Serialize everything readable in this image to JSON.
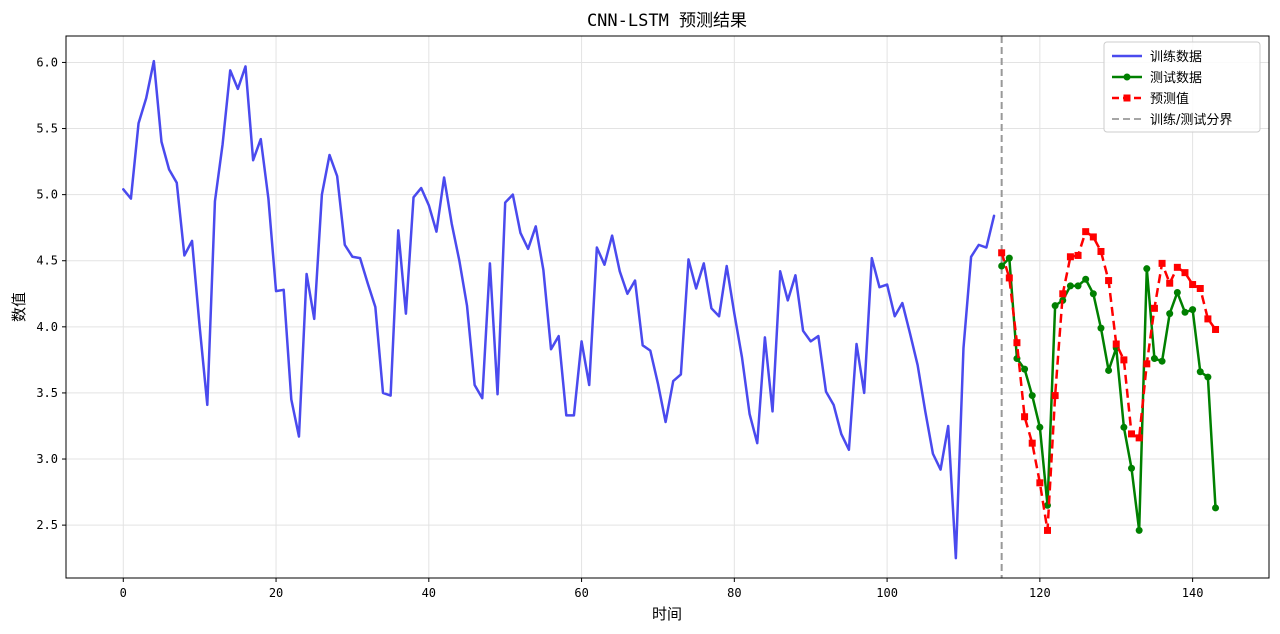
{
  "chart_data": {
    "type": "line",
    "title": "CNN-LSTM 预测结果",
    "xlabel": "时间",
    "ylabel": "数值",
    "xlim": [
      -7.5,
      150
    ],
    "ylim": [
      2.1,
      6.2
    ],
    "xticks": [
      0,
      20,
      40,
      60,
      80,
      100,
      120,
      140
    ],
    "yticks": [
      2.5,
      3.0,
      3.5,
      4.0,
      4.5,
      5.0,
      5.5,
      6.0
    ],
    "xtick_labels": [
      "0",
      "20",
      "40",
      "60",
      "80",
      "100",
      "120",
      "140"
    ],
    "ytick_labels": [
      "2.5",
      "3.0",
      "3.5",
      "4.0",
      "4.5",
      "5.0",
      "5.5",
      "6.0"
    ],
    "grid": true,
    "legend_position": "top-right",
    "split_x": 115,
    "series": [
      {
        "name": "训练数据",
        "color": "#4a4aee",
        "style": "solid",
        "marker": "none",
        "x_start": 0,
        "values": [
          5.04,
          4.97,
          5.54,
          5.73,
          6.01,
          5.4,
          5.19,
          5.09,
          4.54,
          4.65,
          4.0,
          3.41,
          4.95,
          5.38,
          5.94,
          5.8,
          5.97,
          5.26,
          5.42,
          4.97,
          4.27,
          4.28,
          3.45,
          3.17,
          4.4,
          4.06,
          5.0,
          5.3,
          5.14,
          4.62,
          4.53,
          4.52,
          4.33,
          4.15,
          3.5,
          3.48,
          4.73,
          4.1,
          4.98,
          5.05,
          4.92,
          4.72,
          5.13,
          4.78,
          4.5,
          4.16,
          3.56,
          3.46,
          4.48,
          3.49,
          4.94,
          5.0,
          4.71,
          4.59,
          4.76,
          4.43,
          3.83,
          3.93,
          3.33,
          3.33,
          3.89,
          3.56,
          4.6,
          4.47,
          4.69,
          4.42,
          4.25,
          4.35,
          3.86,
          3.82,
          3.57,
          3.28,
          3.59,
          3.64,
          4.51,
          4.29,
          4.48,
          4.14,
          4.08,
          4.46,
          4.1,
          3.77,
          3.34,
          3.12,
          3.92,
          3.36,
          4.42,
          4.2,
          4.39,
          3.97,
          3.89,
          3.93,
          3.51,
          3.41,
          3.19,
          3.07,
          3.87,
          3.5,
          4.52,
          4.3,
          4.32,
          4.08,
          4.18,
          3.95,
          3.71,
          3.36,
          3.04,
          2.92,
          3.25,
          2.25,
          3.84,
          4.53,
          4.62,
          4.6,
          4.84
        ]
      },
      {
        "name": "测试数据",
        "color": "#008000",
        "style": "solid",
        "marker": "circle",
        "x_start": 115,
        "values": [
          4.46,
          4.52,
          3.76,
          3.68,
          3.48,
          3.24,
          2.65,
          4.16,
          4.2,
          4.31,
          4.31,
          4.36,
          4.25,
          3.99,
          3.67,
          3.84,
          3.24,
          2.93,
          2.46,
          4.44,
          3.76,
          3.74,
          4.1,
          4.26,
          4.11,
          4.13,
          3.66,
          3.62,
          2.63
        ]
      },
      {
        "name": "预测值",
        "color": "#ff0000",
        "style": "dashed",
        "marker": "square",
        "x_start": 115,
        "values": [
          4.56,
          4.37,
          3.88,
          3.32,
          3.12,
          2.82,
          2.46,
          3.48,
          4.25,
          4.53,
          4.54,
          4.72,
          4.68,
          4.57,
          4.35,
          3.87,
          3.75,
          3.19,
          3.16,
          3.72,
          4.14,
          4.48,
          4.33,
          4.45,
          4.41,
          4.32,
          4.29,
          4.06,
          3.98
        ]
      }
    ],
    "legend": [
      {
        "label": "训练数据",
        "color": "#4a4aee",
        "style": "solid",
        "marker": "none"
      },
      {
        "label": "测试数据",
        "color": "#008000",
        "style": "solid",
        "marker": "circle"
      },
      {
        "label": "预测值",
        "color": "#ff0000",
        "style": "dashed",
        "marker": "square"
      },
      {
        "label": "训练/测试分界",
        "color": "#999999",
        "style": "dashed",
        "marker": "none"
      }
    ]
  }
}
